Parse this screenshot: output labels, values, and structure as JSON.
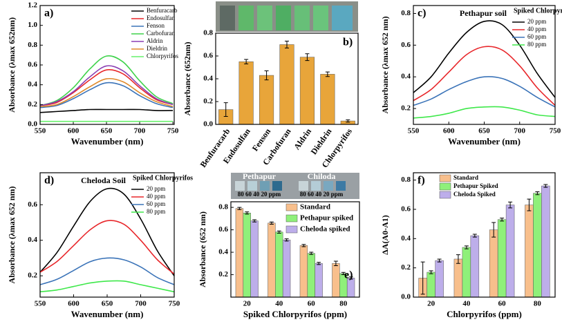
{
  "chart_data": [
    {
      "type": "line",
      "label": "a)",
      "xlabel": "Wavenumber (nm)",
      "ylabel": "Absorbance (λmax 652nm)",
      "x": [
        550,
        575,
        600,
        625,
        650,
        675,
        700,
        725,
        750
      ],
      "xlim": [
        550,
        752
      ],
      "xticks": [
        550,
        600,
        650,
        700,
        750
      ],
      "ylim": [
        0,
        1.2
      ],
      "yticks": [
        {
          "value": 0,
          "label": "0.0"
        },
        0.2,
        0.4,
        0.6,
        0.8,
        {
          "value": 1,
          "label": "1.0"
        },
        1.2
      ],
      "legend": "upper right",
      "series": [
        {
          "name": "Benfuracarb",
          "color": "#000000",
          "values": [
            0.12,
            0.13,
            0.14,
            0.15,
            0.15,
            0.15,
            0.15,
            0.14,
            0.14
          ]
        },
        {
          "name": "Endosulfan",
          "color": "#e8262a",
          "values": [
            0.19,
            0.22,
            0.32,
            0.45,
            0.55,
            0.51,
            0.37,
            0.25,
            0.2
          ]
        },
        {
          "name": "Fenson",
          "color": "#3a73b8",
          "values": [
            0.17,
            0.19,
            0.26,
            0.35,
            0.42,
            0.39,
            0.29,
            0.21,
            0.17
          ]
        },
        {
          "name": "Carbofuran",
          "color": "#3ed24a",
          "values": [
            0.19,
            0.24,
            0.37,
            0.56,
            0.69,
            0.63,
            0.44,
            0.28,
            0.21
          ]
        },
        {
          "name": "Aldrin",
          "color": "#8b3fb3",
          "values": [
            0.19,
            0.23,
            0.33,
            0.48,
            0.59,
            0.54,
            0.39,
            0.26,
            0.2
          ]
        },
        {
          "name": "Dieldrin",
          "color": "#e08a2a",
          "values": [
            0.18,
            0.2,
            0.28,
            0.38,
            0.46,
            0.43,
            0.32,
            0.23,
            0.18
          ]
        },
        {
          "name": "Chlorpyrifos",
          "color": "#66f06a",
          "values": [
            0.03,
            0.03,
            0.03,
            0.03,
            0.03,
            0.03,
            0.03,
            0.03,
            0.03
          ]
        }
      ]
    },
    {
      "type": "bar",
      "label": "b)",
      "ylabel": "Absorbance (652nm)",
      "categories": [
        "Benfuracarb",
        "Endosulfan",
        "Fenson",
        "Carbofuran",
        "Aldrin",
        "Dieldrin",
        "Chlorpyrifos"
      ],
      "ylim": [
        0,
        0.8
      ],
      "yticks": [
        {
          "value": 0,
          "label": "0.0"
        },
        0.2,
        0.4,
        0.6,
        0.8
      ],
      "series": [
        {
          "color": "#e8a53a",
          "values": [
            0.13,
            0.55,
            0.43,
            0.7,
            0.59,
            0.44,
            0.03
          ],
          "errors": [
            0.06,
            0.02,
            0.04,
            0.03,
            0.03,
            0.02,
            0.01
          ]
        }
      ]
    },
    {
      "type": "line",
      "label": "c)",
      "annotation": "Pethapur soil",
      "legend_title": "Spiked Chlorpyrifos",
      "xlabel": "Wavenumber (nm)",
      "ylabel": "Absorbance (λmax 652 nm)",
      "x": [
        550,
        575,
        600,
        625,
        650,
        675,
        700,
        725,
        750
      ],
      "xlim": [
        550,
        750
      ],
      "xticks": [
        550,
        600,
        650,
        700,
        750
      ],
      "ylim": [
        0.1,
        0.85
      ],
      "yticks": [
        0.2,
        0.4,
        0.6,
        0.8
      ],
      "legend": "upper right",
      "series": [
        {
          "name": "20 ppm",
          "color": "#000000",
          "values": [
            0.3,
            0.4,
            0.55,
            0.68,
            0.75,
            0.73,
            0.6,
            0.42,
            0.27
          ]
        },
        {
          "name": "40 ppm",
          "color": "#e8262a",
          "values": [
            0.25,
            0.32,
            0.43,
            0.54,
            0.59,
            0.57,
            0.47,
            0.33,
            0.22
          ]
        },
        {
          "name": "60 ppm",
          "color": "#3a73b8",
          "values": [
            0.22,
            0.26,
            0.32,
            0.37,
            0.4,
            0.39,
            0.34,
            0.27,
            0.21
          ]
        },
        {
          "name": "80 ppm",
          "color": "#3ee84a",
          "values": [
            0.14,
            0.15,
            0.17,
            0.2,
            0.21,
            0.21,
            0.19,
            0.16,
            0.15
          ]
        }
      ]
    },
    {
      "type": "line",
      "label": "d)",
      "annotation": "Cheloda Soil",
      "legend_title": "Spiked Chlorpyrifos",
      "xlabel": "Wavenumber (nm)",
      "ylabel": "Absorbance (λmax 652 nm)",
      "x": [
        550,
        575,
        600,
        625,
        650,
        675,
        700,
        725,
        750
      ],
      "xlim": [
        550,
        750
      ],
      "xticks": [
        550,
        600,
        650,
        700,
        750
      ],
      "ylim": [
        0.08,
        0.78
      ],
      "yticks": [
        0.2,
        0.4,
        0.6
      ],
      "legend": "upper right",
      "series": [
        {
          "name": "20 ppm",
          "color": "#000000",
          "values": [
            0.22,
            0.33,
            0.48,
            0.62,
            0.69,
            0.66,
            0.52,
            0.34,
            0.2
          ]
        },
        {
          "name": "40 ppm",
          "color": "#e8262a",
          "values": [
            0.22,
            0.28,
            0.37,
            0.46,
            0.51,
            0.49,
            0.4,
            0.29,
            0.21
          ]
        },
        {
          "name": "60 ppm",
          "color": "#3a73b8",
          "values": [
            0.15,
            0.18,
            0.23,
            0.28,
            0.3,
            0.29,
            0.25,
            0.19,
            0.15
          ]
        },
        {
          "name": "80 ppm",
          "color": "#3ee84a",
          "values": [
            0.11,
            0.12,
            0.14,
            0.16,
            0.17,
            0.17,
            0.15,
            0.13,
            0.11
          ]
        }
      ]
    },
    {
      "type": "bar",
      "label": "e)",
      "xlabel": "Spiked Chlorpyrifos (ppm)",
      "ylabel": "Absorbance (652 nm)",
      "photo_labels": [
        "Pethapur",
        "Chiloda",
        "80  60  40  20 ppm",
        "80  60  40  20 ppm"
      ],
      "categories": [
        "20",
        "40",
        "60",
        "80"
      ],
      "ylim": [
        0,
        0.85
      ],
      "yticks": [
        0.2,
        0.4,
        0.6,
        0.8
      ],
      "legend": "upper right",
      "series": [
        {
          "name": "Standard",
          "color": "#f8bf8c",
          "values": [
            0.79,
            0.66,
            0.46,
            0.3
          ],
          "errors": [
            0.01,
            0.01,
            0.01,
            0.02
          ]
        },
        {
          "name": "Pethapur spiked",
          "color": "#8ff07a",
          "values": [
            0.75,
            0.58,
            0.39,
            0.21
          ],
          "errors": [
            0.01,
            0.01,
            0.01,
            0.01
          ]
        },
        {
          "name": "Cheloda spiked",
          "color": "#bdaeea",
          "values": [
            0.68,
            0.51,
            0.3,
            0.17
          ],
          "errors": [
            0.01,
            0.01,
            0.01,
            0.01
          ]
        }
      ]
    },
    {
      "type": "bar",
      "label": "f)",
      "xlabel": "Chlorpyrifos (ppm)",
      "ylabel": "ΔA(A0-A1)",
      "categories": [
        "20",
        "40",
        "60",
        "80"
      ],
      "ylim": [
        0,
        0.85
      ],
      "yticks": [
        {
          "value": 0,
          "label": "0.0"
        },
        0.2,
        0.4,
        0.6,
        0.8
      ],
      "legend": "upper left",
      "series": [
        {
          "name": "Standard",
          "color": "#f8bf8c",
          "values": [
            0.13,
            0.26,
            0.46,
            0.63
          ],
          "errors": [
            0.11,
            0.03,
            0.05,
            0.04
          ]
        },
        {
          "name": "Pethapur Spiked",
          "color": "#8ff07a",
          "values": [
            0.17,
            0.34,
            0.53,
            0.71
          ],
          "errors": [
            0.01,
            0.01,
            0.01,
            0.01
          ]
        },
        {
          "name": "Cheloda Spiked",
          "color": "#bdaeea",
          "values": [
            0.25,
            0.42,
            0.63,
            0.76
          ],
          "errors": [
            0.01,
            0.01,
            0.02,
            0.01
          ]
        }
      ]
    }
  ]
}
